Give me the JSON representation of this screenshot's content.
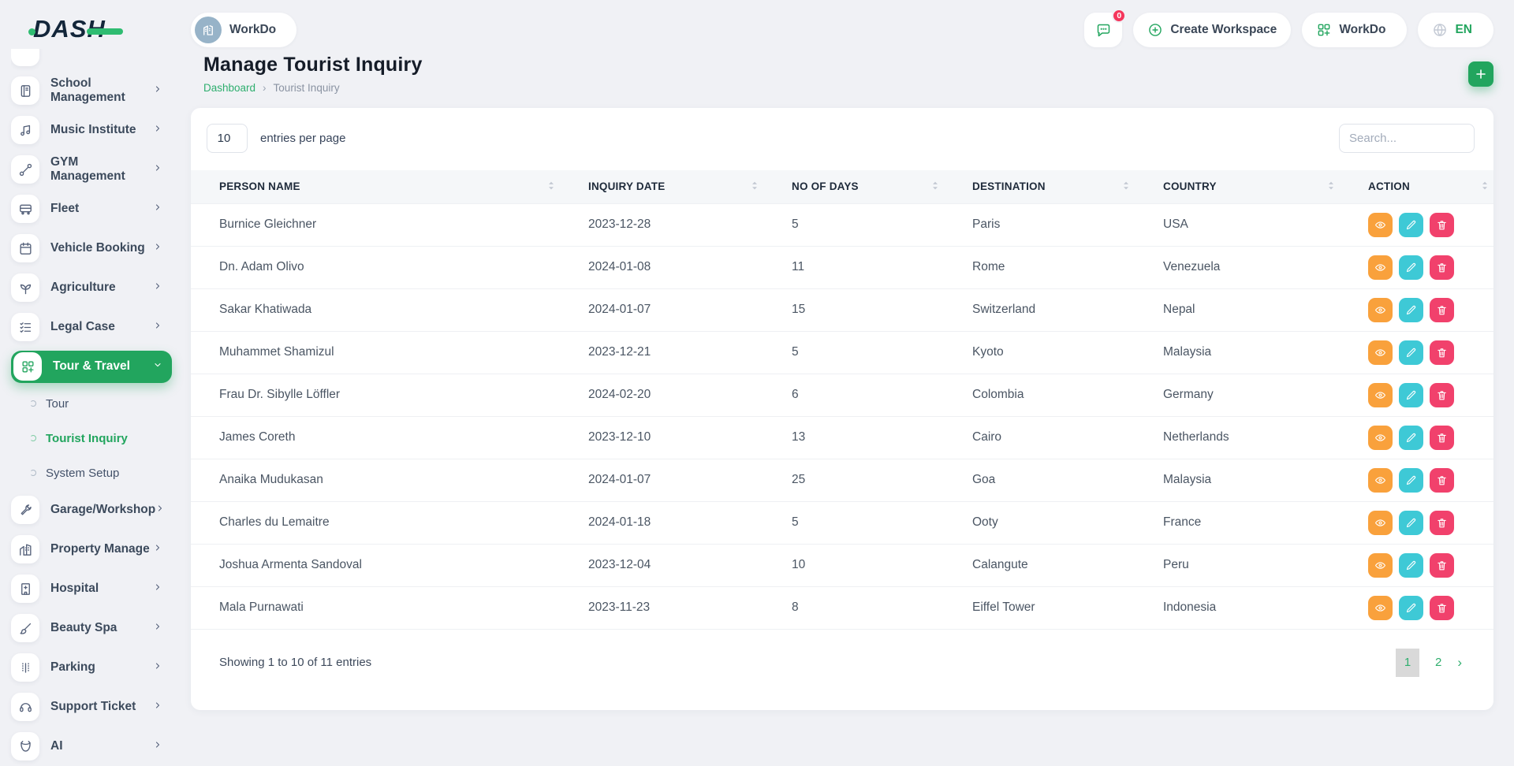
{
  "brand": {
    "logo_text": "DASH"
  },
  "theme": {
    "primary_green": "#22A55E",
    "link_green": "#2EAE6E",
    "view_orange": "#F9A13C",
    "edit_teal": "#3EC9D6",
    "delete_pink": "#F1416C",
    "badge_red": "#F5365C"
  },
  "sidebar": {
    "items": [
      {
        "type": "main",
        "label": "School Management",
        "icon": "book-icon"
      },
      {
        "type": "main",
        "label": "Music Institute",
        "icon": "music-icon"
      },
      {
        "type": "main",
        "label": "GYM Management",
        "icon": "gym-icon"
      },
      {
        "type": "main",
        "label": "Fleet",
        "icon": "fleet-icon"
      },
      {
        "type": "main",
        "label": "Vehicle Booking",
        "icon": "calendar-icon"
      },
      {
        "type": "main",
        "label": "Agriculture",
        "icon": "plant-icon"
      },
      {
        "type": "main",
        "label": "Legal Case",
        "icon": "legal-icon"
      },
      {
        "type": "main",
        "label": "Tour & Travel",
        "icon": "grid-icon",
        "active": true,
        "expanded": true
      },
      {
        "type": "sub",
        "label": "Tour"
      },
      {
        "type": "sub",
        "label": "Tourist Inquiry",
        "active": true
      },
      {
        "type": "sub",
        "label": "System Setup"
      },
      {
        "type": "main",
        "label": "Garage/Workshop",
        "icon": "wrench-icon"
      },
      {
        "type": "main",
        "label": "Property Manage",
        "icon": "building-icon"
      },
      {
        "type": "main",
        "label": "Hospital",
        "icon": "hospital-icon"
      },
      {
        "type": "main",
        "label": "Beauty Spa",
        "icon": "brush-icon"
      },
      {
        "type": "main",
        "label": "Parking",
        "icon": "parking-icon"
      },
      {
        "type": "main",
        "label": "Support Ticket",
        "icon": "headset-icon"
      },
      {
        "type": "main",
        "label": "AI",
        "icon": "ai-icon"
      }
    ]
  },
  "header": {
    "workspace_chip_label": "WorkDo",
    "messages_badge": "0",
    "create_workspace_label": "Create Workspace",
    "workdo_menu_label": "WorkDo",
    "language_code": "EN"
  },
  "page": {
    "title": "Manage Tourist Inquiry",
    "breadcrumb": {
      "home": "Dashboard",
      "separator": "›",
      "current": "Tourist Inquiry"
    }
  },
  "toolbar": {
    "entries_per_page_value": "10",
    "entries_per_page_label": "entries per page",
    "search_placeholder": "Search..."
  },
  "table": {
    "columns": [
      "PERSON NAME",
      "INQUIRY DATE",
      "NO OF DAYS",
      "DESTINATION",
      "COUNTRY",
      "ACTION"
    ],
    "rows": [
      {
        "person_name": "Burnice Gleichner",
        "inquiry_date": "2023-12-28",
        "no_of_days": "5",
        "destination": "Paris",
        "country": "USA"
      },
      {
        "person_name": "Dn. Adam Olivo",
        "inquiry_date": "2024-01-08",
        "no_of_days": "11",
        "destination": "Rome",
        "country": "Venezuela"
      },
      {
        "person_name": "Sakar Khatiwada",
        "inquiry_date": "2024-01-07",
        "no_of_days": "15",
        "destination": "Switzerland",
        "country": "Nepal"
      },
      {
        "person_name": "Muhammet Shamizul",
        "inquiry_date": "2023-12-21",
        "no_of_days": "5",
        "destination": "Kyoto",
        "country": "Malaysia"
      },
      {
        "person_name": "Frau Dr. Sibylle Löffler",
        "inquiry_date": "2024-02-20",
        "no_of_days": "6",
        "destination": "Colombia",
        "country": "Germany"
      },
      {
        "person_name": "James Coreth",
        "inquiry_date": "2023-12-10",
        "no_of_days": "13",
        "destination": "Cairo",
        "country": "Netherlands"
      },
      {
        "person_name": "Anaika Mudukasan",
        "inquiry_date": "2024-01-07",
        "no_of_days": "25",
        "destination": "Goa",
        "country": "Malaysia"
      },
      {
        "person_name": "Charles du Lemaitre",
        "inquiry_date": "2024-01-18",
        "no_of_days": "5",
        "destination": "Ooty",
        "country": "France"
      },
      {
        "person_name": "Joshua Armenta Sandoval",
        "inquiry_date": "2023-12-04",
        "no_of_days": "10",
        "destination": "Calangute",
        "country": "Peru"
      },
      {
        "person_name": "Mala Purnawati",
        "inquiry_date": "2023-11-23",
        "no_of_days": "8",
        "destination": "Eiffel Tower",
        "country": "Indonesia"
      }
    ]
  },
  "footer": {
    "showing_text": "Showing 1 to 10 of 11 entries",
    "pages": [
      "1",
      "2"
    ],
    "active_page": "1",
    "next_label": "›"
  }
}
